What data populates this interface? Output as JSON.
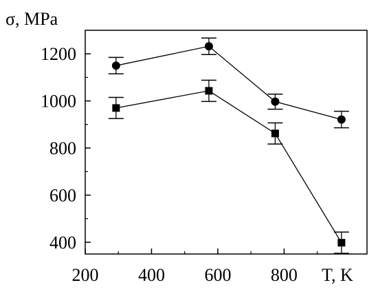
{
  "chart_data": {
    "type": "scatter",
    "title": "",
    "xlabel": "T, K",
    "ylabel": "σ, MPa",
    "xlim": [
      200,
      1050
    ],
    "ylim": [
      350,
      1300
    ],
    "xticks": [
      200,
      400,
      600,
      800
    ],
    "yticks": [
      400,
      600,
      800,
      1000,
      1200
    ],
    "grid": false,
    "legend": "none",
    "colors": {
      "line": "#000000",
      "marker": "#000000"
    },
    "series": [
      {
        "marker": "circle",
        "x": [
          293,
          573,
          773,
          973
        ],
        "y": [
          1150,
          1232,
          997,
          921
        ],
        "err": [
          35,
          35,
          32,
          35
        ]
      },
      {
        "marker": "square",
        "x": [
          293,
          573,
          773,
          973
        ],
        "y": [
          970,
          1043,
          862,
          398
        ],
        "err": [
          45,
          45,
          45,
          45
        ]
      }
    ]
  }
}
